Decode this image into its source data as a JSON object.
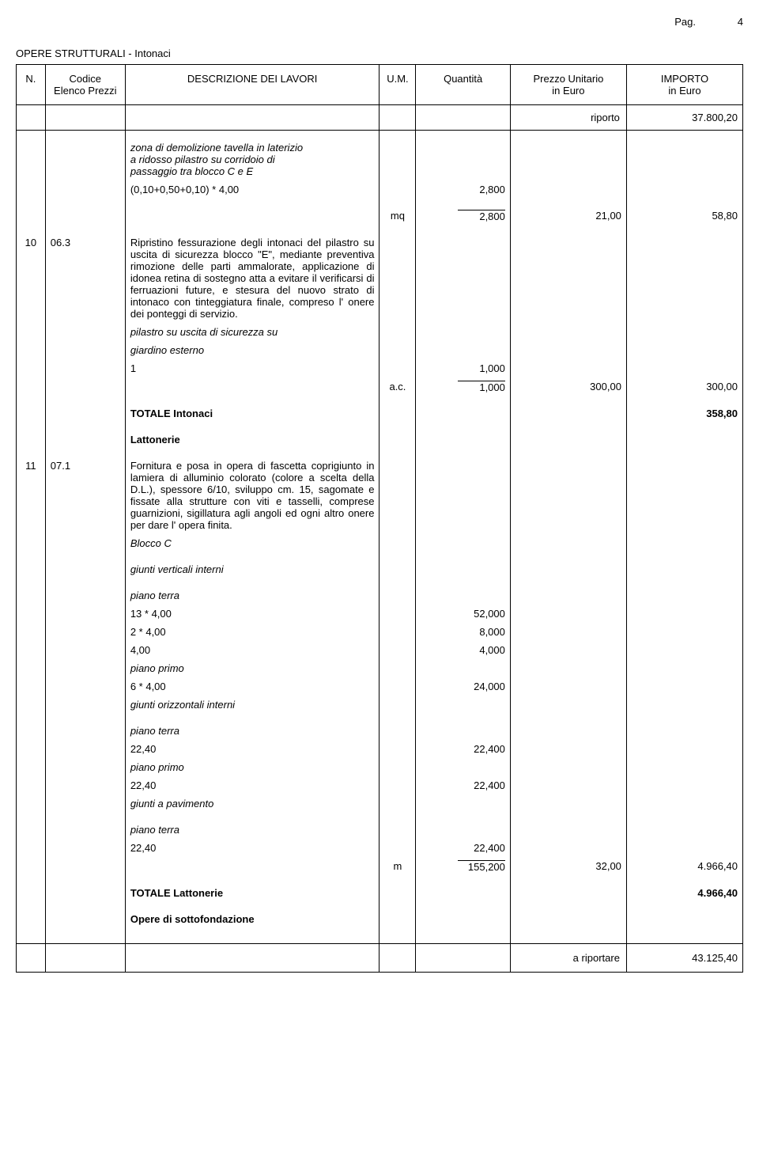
{
  "page": {
    "label": "Pag.",
    "number": "4"
  },
  "section_title": "OPERE STRUTTURALI - Intonaci",
  "headers": {
    "n": "N.",
    "code": "Codice\nElenco Prezzi",
    "desc": "DESCRIZIONE DEI LAVORI",
    "um": "U.M.",
    "qty": "Quantità",
    "price": "Prezzo Unitario\nin Euro",
    "import": "IMPORTO\nin Euro"
  },
  "riporto": {
    "label": "riporto",
    "value": "37.800,20"
  },
  "item9": {
    "desc_line1": "zona di demolizione tavella in laterizio",
    "desc_line2": "a ridosso pilastro su corridoio di",
    "desc_line3": "passaggio tra blocco C e E",
    "calc_expr": "(0,10+0,50+0,10) * 4,00",
    "calc_val": "2,800",
    "um": "mq",
    "qty": "2,800",
    "price": "21,00",
    "import": "58,80"
  },
  "item10": {
    "n": "10",
    "code": "06.3",
    "desc": "Ripristino fessurazione degli intonaci del pilastro su uscita di sicurezza blocco \"E\", mediante preventiva rimozione delle parti ammalorate, applicazione di idonea retina di sostegno atta a evitare il verificarsi di ferruazioni future, e stesura del nuovo strato di intonaco con tinteggiatura finale, compreso l' onere dei ponteggi di servizio.",
    "sub1": "pilastro su uscita di sicurezza su",
    "sub2": "giardino esterno",
    "one": "1",
    "one_val": "1,000",
    "um": "a.c.",
    "qty": "1,000",
    "price": "300,00",
    "import": "300,00"
  },
  "totale_intonaci": {
    "label": "TOTALE Intonaci",
    "value": "358,80"
  },
  "lattonerie_label": "Lattonerie",
  "item11": {
    "n": "11",
    "code": "07.1",
    "desc": "Fornitura e posa in opera di fascetta coprigiunto in lamiera di alluminio colorato (colore a scelta della D.L.), spessore 6/10, sviluppo cm. 15, sagomate e fissate alla strutture con viti e tasselli, comprese guarnizioni, sigillatura agli angoli ed ogni altro onere per dare l' opera finita.",
    "blocco": "Blocco C",
    "gvi": "giunti verticali interni",
    "pt": "piano terra",
    "l1_expr": "13 * 4,00",
    "l1_val": "52,000",
    "l2_expr": "2 * 4,00",
    "l2_val": "8,000",
    "l3_expr": "4,00",
    "l3_val": "4,000",
    "pp": "piano primo",
    "l4_expr": "6 * 4,00",
    "l4_val": "24,000",
    "goi": "giunti orizzontali interni",
    "l5_expr": "22,40",
    "l5_val": "22,400",
    "l6_expr": "22,40",
    "l6_val": "22,400",
    "gap": "giunti a pavimento",
    "l7_expr": "22,40",
    "l7_val": "22,400",
    "um": "m",
    "qty": "155,200",
    "price": "32,00",
    "import": "4.966,40"
  },
  "totale_lattonerie": {
    "label": "TOTALE Lattonerie",
    "value": "4.966,40"
  },
  "opere_sotto": "Opere di sottofondazione",
  "a_riportare": {
    "label": "a riportare",
    "value": "43.125,40"
  }
}
